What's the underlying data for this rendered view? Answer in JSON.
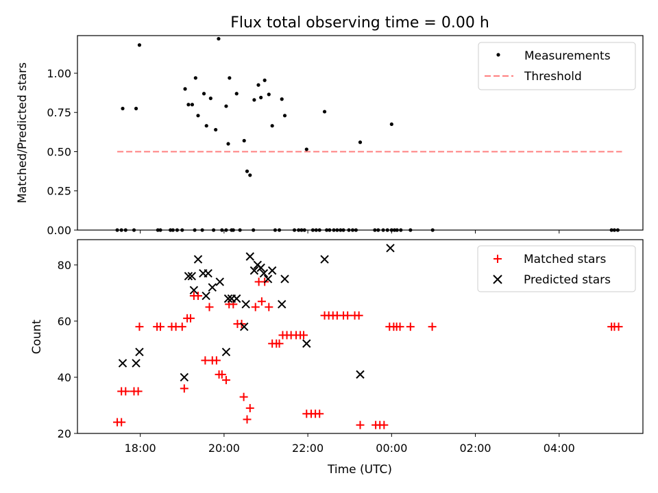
{
  "chart_data": [
    {
      "type": "scatter",
      "title": "Flux total observing time = 0.00 h",
      "xlabel": "",
      "ylabel": "Matched/Predicted stars",
      "xlim": [
        16.5,
        30.0
      ],
      "ylim": [
        0.0,
        1.24
      ],
      "yticks": [
        0.0,
        0.25,
        0.5,
        0.75,
        1.0
      ],
      "ytick_labels": [
        "0.00",
        "0.25",
        "0.50",
        "0.75",
        "1.00"
      ],
      "legend": [
        "Measurements",
        "Threshold"
      ],
      "legend_position": "top-right",
      "threshold": {
        "name": "Threshold",
        "value": 0.5,
        "x": [
          17.45,
          29.5
        ],
        "color": "#ff7f7f"
      },
      "series": [
        {
          "name": "Measurements",
          "color": "#000000",
          "points": [
            [
              17.58,
              0.775
            ],
            [
              17.9,
              0.775
            ],
            [
              17.98,
              1.18
            ],
            [
              19.07,
              0.9
            ],
            [
              19.15,
              0.8
            ],
            [
              19.24,
              0.8
            ],
            [
              19.32,
              0.97
            ],
            [
              19.38,
              0.73
            ],
            [
              19.52,
              0.87
            ],
            [
              19.58,
              0.665
            ],
            [
              19.68,
              0.84
            ],
            [
              19.8,
              0.64
            ],
            [
              19.87,
              1.22
            ],
            [
              20.1,
              0.55
            ],
            [
              20.05,
              0.79
            ],
            [
              20.13,
              0.97
            ],
            [
              20.3,
              0.87
            ],
            [
              20.48,
              0.57
            ],
            [
              20.55,
              0.375
            ],
            [
              20.62,
              0.35
            ],
            [
              20.72,
              0.83
            ],
            [
              20.82,
              0.925
            ],
            [
              20.88,
              0.845
            ],
            [
              20.97,
              0.955
            ],
            [
              21.07,
              0.865
            ],
            [
              21.15,
              0.665
            ],
            [
              21.38,
              0.835
            ],
            [
              21.45,
              0.73
            ],
            [
              21.97,
              0.515
            ],
            [
              22.4,
              0.755
            ],
            [
              23.25,
              0.56
            ],
            [
              24.0,
              0.675
            ],
            [
              17.45,
              0
            ],
            [
              17.55,
              0
            ],
            [
              17.65,
              0
            ],
            [
              17.85,
              0
            ],
            [
              18.42,
              0
            ],
            [
              18.48,
              0
            ],
            [
              18.72,
              0
            ],
            [
              18.78,
              0
            ],
            [
              18.88,
              0
            ],
            [
              19.0,
              0
            ],
            [
              19.3,
              0
            ],
            [
              19.48,
              0
            ],
            [
              19.75,
              0
            ],
            [
              19.95,
              0
            ],
            [
              20.05,
              0
            ],
            [
              20.18,
              0
            ],
            [
              20.22,
              0
            ],
            [
              20.38,
              0
            ],
            [
              20.7,
              0
            ],
            [
              21.22,
              0
            ],
            [
              21.32,
              0
            ],
            [
              21.68,
              0
            ],
            [
              21.78,
              0
            ],
            [
              21.85,
              0
            ],
            [
              21.92,
              0
            ],
            [
              22.12,
              0
            ],
            [
              22.2,
              0
            ],
            [
              22.28,
              0
            ],
            [
              22.45,
              0
            ],
            [
              22.52,
              0
            ],
            [
              22.62,
              0
            ],
            [
              22.7,
              0
            ],
            [
              22.78,
              0
            ],
            [
              22.85,
              0
            ],
            [
              22.98,
              0
            ],
            [
              23.07,
              0
            ],
            [
              23.15,
              0
            ],
            [
              23.6,
              0
            ],
            [
              23.68,
              0
            ],
            [
              23.8,
              0
            ],
            [
              23.9,
              0
            ],
            [
              24.0,
              0
            ],
            [
              24.07,
              0
            ],
            [
              24.13,
              0
            ],
            [
              24.22,
              0
            ],
            [
              24.45,
              0
            ],
            [
              24.98,
              0
            ],
            [
              29.25,
              0
            ],
            [
              29.32,
              0
            ],
            [
              29.4,
              0
            ]
          ]
        }
      ]
    },
    {
      "type": "scatter",
      "title": "",
      "xlabel": "Time (UTC)",
      "ylabel": "Count",
      "xlim": [
        16.5,
        30.0
      ],
      "ylim": [
        20,
        89
      ],
      "yticks": [
        20,
        40,
        60,
        80
      ],
      "ytick_labels": [
        "20",
        "40",
        "60",
        "80"
      ],
      "xticks": [
        18,
        20,
        22,
        24,
        26,
        28
      ],
      "xtick_labels": [
        "18:00",
        "20:00",
        "22:00",
        "00:00",
        "02:00",
        "04:00"
      ],
      "legend": [
        "Matched stars",
        "Predicted stars"
      ],
      "legend_position": "top-right",
      "series": [
        {
          "name": "Matched stars",
          "marker": "plus",
          "color": "#ff0000",
          "points": [
            [
              17.45,
              24
            ],
            [
              17.55,
              24
            ],
            [
              17.55,
              35
            ],
            [
              17.65,
              35
            ],
            [
              17.85,
              35
            ],
            [
              17.95,
              35
            ],
            [
              17.98,
              58
            ],
            [
              18.4,
              58
            ],
            [
              18.48,
              58
            ],
            [
              18.75,
              58
            ],
            [
              18.85,
              58
            ],
            [
              19.0,
              58
            ],
            [
              19.05,
              36
            ],
            [
              19.12,
              61
            ],
            [
              19.2,
              61
            ],
            [
              19.28,
              69
            ],
            [
              19.38,
              69
            ],
            [
              19.55,
              46
            ],
            [
              19.65,
              65
            ],
            [
              19.72,
              46
            ],
            [
              19.82,
              46
            ],
            [
              19.88,
              41
            ],
            [
              19.95,
              41
            ],
            [
              20.05,
              39
            ],
            [
              20.12,
              66
            ],
            [
              20.22,
              66
            ],
            [
              20.32,
              59
            ],
            [
              20.42,
              59
            ],
            [
              20.47,
              33
            ],
            [
              20.55,
              25
            ],
            [
              20.62,
              29
            ],
            [
              20.75,
              65
            ],
            [
              20.83,
              74
            ],
            [
              20.9,
              67
            ],
            [
              20.97,
              74
            ],
            [
              21.07,
              65
            ],
            [
              21.15,
              52
            ],
            [
              21.25,
              52
            ],
            [
              21.32,
              52
            ],
            [
              21.4,
              55
            ],
            [
              21.5,
              55
            ],
            [
              21.6,
              55
            ],
            [
              21.72,
              55
            ],
            [
              21.82,
              55
            ],
            [
              21.9,
              55
            ],
            [
              21.97,
              27
            ],
            [
              22.08,
              27
            ],
            [
              22.18,
              27
            ],
            [
              22.28,
              27
            ],
            [
              22.4,
              62
            ],
            [
              22.5,
              62
            ],
            [
              22.6,
              62
            ],
            [
              22.7,
              62
            ],
            [
              22.85,
              62
            ],
            [
              22.95,
              62
            ],
            [
              23.12,
              62
            ],
            [
              23.22,
              62
            ],
            [
              23.25,
              23
            ],
            [
              23.62,
              23
            ],
            [
              23.72,
              23
            ],
            [
              23.82,
              23
            ],
            [
              23.95,
              58
            ],
            [
              24.05,
              58
            ],
            [
              24.12,
              58
            ],
            [
              24.2,
              58
            ],
            [
              24.45,
              58
            ],
            [
              24.97,
              58
            ],
            [
              29.25,
              58
            ],
            [
              29.32,
              58
            ],
            [
              29.42,
              58
            ]
          ]
        },
        {
          "name": "Predicted stars",
          "marker": "x",
          "color": "#000000",
          "points": [
            [
              17.58,
              45
            ],
            [
              17.9,
              45
            ],
            [
              17.98,
              49
            ],
            [
              19.05,
              40
            ],
            [
              19.15,
              76
            ],
            [
              19.23,
              76
            ],
            [
              19.28,
              71
            ],
            [
              19.38,
              82
            ],
            [
              19.5,
              77
            ],
            [
              19.57,
              69
            ],
            [
              19.62,
              77
            ],
            [
              19.72,
              72
            ],
            [
              19.9,
              74
            ],
            [
              20.05,
              49
            ],
            [
              20.1,
              68
            ],
            [
              20.18,
              68
            ],
            [
              20.3,
              68
            ],
            [
              20.48,
              58
            ],
            [
              20.52,
              66
            ],
            [
              20.62,
              83
            ],
            [
              20.72,
              78
            ],
            [
              20.8,
              80
            ],
            [
              20.88,
              79
            ],
            [
              20.95,
              77
            ],
            [
              21.05,
              75
            ],
            [
              21.15,
              78
            ],
            [
              21.38,
              66
            ],
            [
              21.45,
              75
            ],
            [
              21.97,
              52
            ],
            [
              22.4,
              82
            ],
            [
              23.25,
              41
            ],
            [
              23.97,
              86
            ]
          ]
        }
      ]
    }
  ]
}
